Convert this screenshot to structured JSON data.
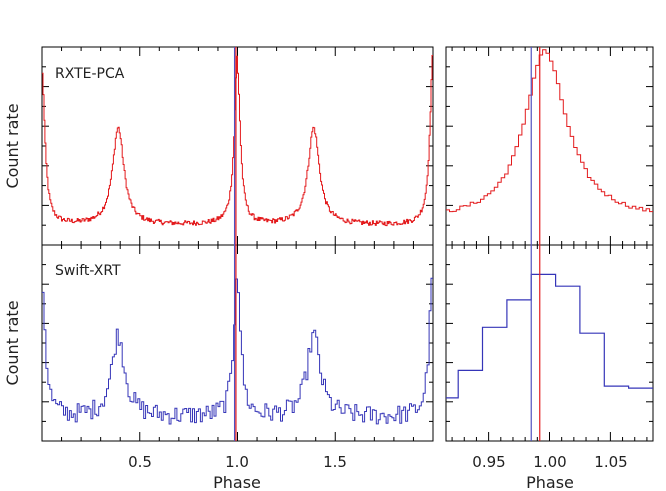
{
  "figure": {
    "colors": {
      "rxte": "#e31a1c",
      "swift": "#3535b8",
      "marker_red": "#e31a1c",
      "marker_blue": "#5050c0",
      "axis": "#000000"
    }
  },
  "chart_data": [
    {
      "type": "line",
      "panel": "top-left",
      "annotation": "RXTE-PCA",
      "ylabel": "Count rate",
      "xlabel": "",
      "xlim": [
        0.0,
        2.0
      ],
      "ylim": [
        0.0,
        1.0
      ],
      "xticks": [
        0.5,
        1.0,
        1.5
      ],
      "xtick_labels": [],
      "series": [
        {
          "color": "#e31a1c",
          "profile": "three-peak pulse: narrow peaks at phase 0.0, 1.0, 2.0 (normalized height 0.99) and secondary peaks at 0.39 and 1.39 (normalized height 0.62); baseline about 0.12"
        }
      ],
      "vlines": [
        {
          "x": 0.985,
          "color": "#5050c0"
        },
        {
          "x": 0.992,
          "color": "#e31a1c"
        }
      ]
    },
    {
      "type": "line",
      "panel": "top-right",
      "annotation": "",
      "ylabel": "",
      "xlabel": "",
      "xlim": [
        0.915,
        1.085
      ],
      "ylim": [
        0.0,
        1.0
      ],
      "xticks": [
        0.95,
        1.0,
        1.05
      ],
      "xtick_labels": [],
      "series": [
        {
          "color": "#e31a1c",
          "profile": "zoom of main peak; maximum about 0.97 near phase 0.996; wings about 0.2"
        }
      ],
      "vlines": [
        {
          "x": 0.985,
          "color": "#5050c0"
        },
        {
          "x": 0.992,
          "color": "#e31a1c"
        }
      ]
    },
    {
      "type": "line",
      "panel": "bottom-left",
      "annotation": "Swift-XRT",
      "ylabel": "Count rate",
      "xlabel": "Phase",
      "xlim": [
        0.0,
        2.0
      ],
      "ylim": [
        0.0,
        1.0
      ],
      "xticks": [
        0.5,
        1.0,
        1.5
      ],
      "xtick_labels": [
        "0.5",
        "1.0",
        "1.5"
      ],
      "series": [
        {
          "color": "#3535b8",
          "profile": "histogram pulse: peaks at 0.0, 1.0, 2.0 (about 0.9) and 0.39, 1.39 (about 0.55); baseline about 0.15"
        }
      ],
      "vlines": [
        {
          "x": 0.985,
          "color": "#5050c0"
        },
        {
          "x": 0.992,
          "color": "#e31a1c"
        }
      ]
    },
    {
      "type": "line",
      "panel": "bottom-right",
      "annotation": "",
      "ylabel": "",
      "xlabel": "Phase",
      "xlim": [
        0.915,
        1.085
      ],
      "ylim": [
        0.0,
        1.0
      ],
      "xticks": [
        0.95,
        1.0,
        1.05
      ],
      "xtick_labels": [
        "0.95",
        "1.00",
        "1.05"
      ],
      "series": [
        {
          "color": "#3535b8",
          "bins": [
            0.905,
            0.925,
            0.945,
            0.965,
            0.985,
            1.005,
            1.025,
            1.045,
            1.065,
            1.085
          ],
          "values": [
            0.22,
            0.36,
            0.58,
            0.72,
            0.85,
            0.79,
            0.55,
            0.28,
            0.27
          ]
        }
      ],
      "vlines": [
        {
          "x": 0.985,
          "color": "#5050c0"
        },
        {
          "x": 0.992,
          "color": "#e31a1c"
        }
      ]
    }
  ]
}
